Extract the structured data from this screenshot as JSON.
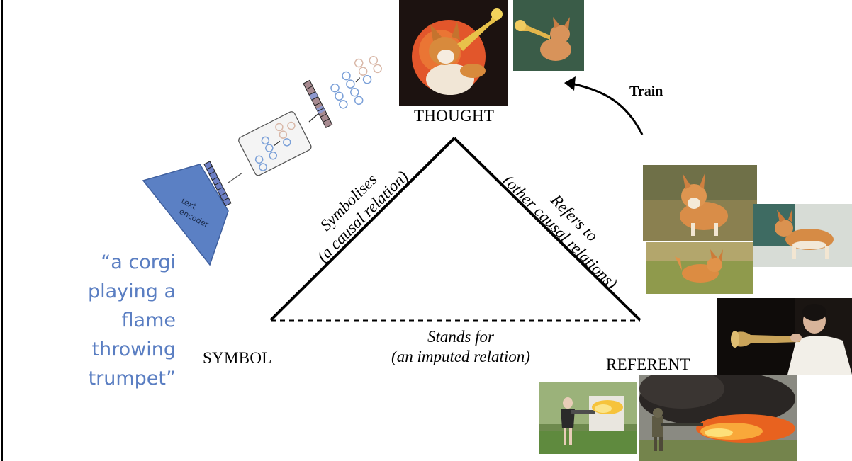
{
  "prompt": {
    "lines": [
      "“a corgi",
      "playing a",
      "flame",
      "throwing",
      "trumpet”"
    ]
  },
  "encoder": {
    "label_line1": "text",
    "label_line2": "encoder"
  },
  "labels": {
    "thought": "THOUGHT",
    "symbol": "SYMBOL",
    "referent": "REFERENT",
    "train": "Train"
  },
  "edges": {
    "symbolises": {
      "line1": "Symbolises",
      "line2": "(a causal relation)"
    },
    "refers_to": {
      "line1": "Refers to",
      "line2": "(other causal relations)"
    },
    "stands_for": {
      "line1": "Stands for",
      "line2": "(an imputed relation)"
    }
  },
  "images": {
    "generated": [
      "corgi-trumpet-illustration",
      "corgi-trumpet-render"
    ],
    "referents": [
      "corgi-standing-photo",
      "corgi-side-photo",
      "corgi-running-photo",
      "trumpet-player-photo",
      "flamethrower-woman-photo",
      "flamethrower-soldier-photo"
    ]
  },
  "colors": {
    "prompt_text": "#5a7ec2",
    "encoder": "#5b80c4",
    "token_fill": "#6d7fc4",
    "latent_ring_blue": "#7ba0d8",
    "latent_ring_peach": "#d9b8a8"
  }
}
